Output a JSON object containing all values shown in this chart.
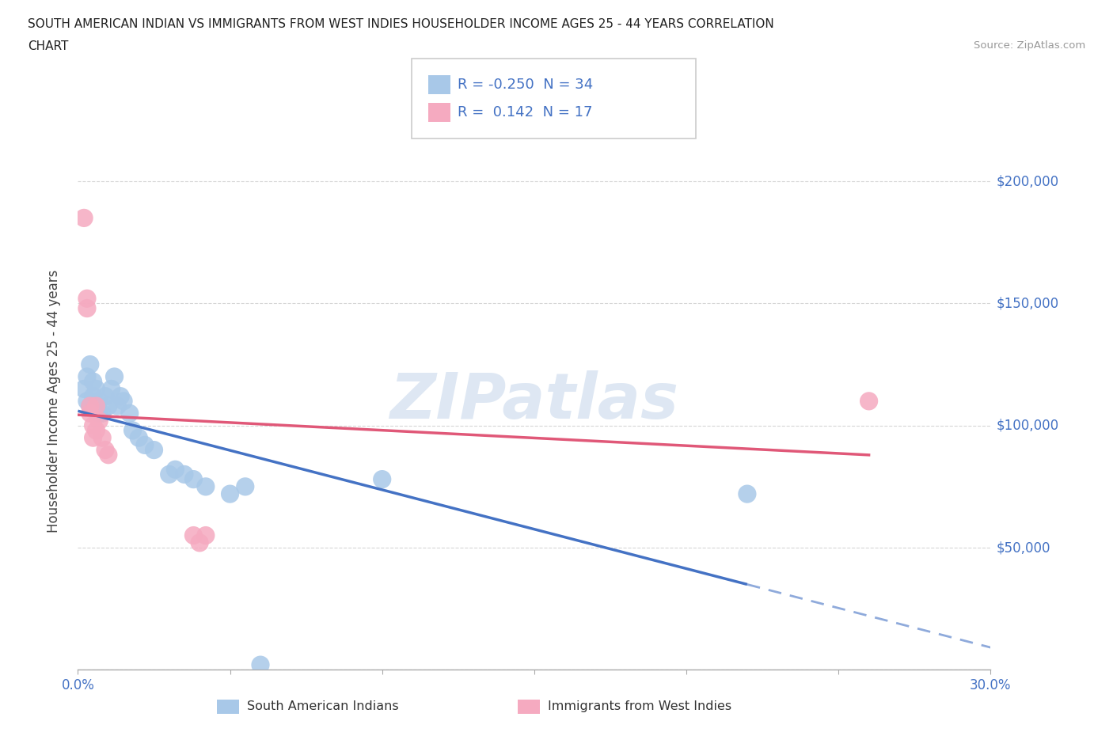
{
  "title_line1": "SOUTH AMERICAN INDIAN VS IMMIGRANTS FROM WEST INDIES HOUSEHOLDER INCOME AGES 25 - 44 YEARS CORRELATION",
  "title_line2": "CHART",
  "source": "Source: ZipAtlas.com",
  "ylabel": "Householder Income Ages 25 - 44 years",
  "legend_label1": "South American Indians",
  "legend_label2": "Immigrants from West Indies",
  "R1": -0.25,
  "N1": 34,
  "R2": 0.142,
  "N2": 17,
  "color_blue_fill": "#a8c8e8",
  "color_pink_fill": "#f5aac0",
  "color_blue_line": "#4472c4",
  "color_pink_line": "#e05878",
  "color_axis_text": "#4472c4",
  "watermark_color": "#c8d8ec",
  "xlim_min": 0.0,
  "xlim_max": 0.3,
  "ylim_min": 0,
  "ylim_max": 220000,
  "blue_x": [
    0.002,
    0.003,
    0.003,
    0.004,
    0.004,
    0.005,
    0.005,
    0.006,
    0.006,
    0.007,
    0.007,
    0.008,
    0.009,
    0.01,
    0.011,
    0.012,
    0.013,
    0.014,
    0.015,
    0.017,
    0.018,
    0.02,
    0.022,
    0.025,
    0.03,
    0.032,
    0.035,
    0.038,
    0.042,
    0.05,
    0.055,
    0.06,
    0.1,
    0.22
  ],
  "blue_y": [
    115000,
    110000,
    120000,
    108000,
    125000,
    112000,
    118000,
    108000,
    115000,
    110000,
    105000,
    105000,
    112000,
    108000,
    115000,
    120000,
    108000,
    112000,
    110000,
    105000,
    98000,
    95000,
    92000,
    90000,
    80000,
    82000,
    80000,
    78000,
    75000,
    72000,
    75000,
    2000,
    78000,
    72000
  ],
  "pink_x": [
    0.002,
    0.003,
    0.003,
    0.004,
    0.004,
    0.005,
    0.005,
    0.006,
    0.006,
    0.007,
    0.008,
    0.009,
    0.01,
    0.038,
    0.04,
    0.042,
    0.26
  ],
  "pink_y": [
    185000,
    152000,
    148000,
    105000,
    108000,
    100000,
    95000,
    108000,
    98000,
    102000,
    95000,
    90000,
    88000,
    55000,
    52000,
    55000,
    110000
  ]
}
